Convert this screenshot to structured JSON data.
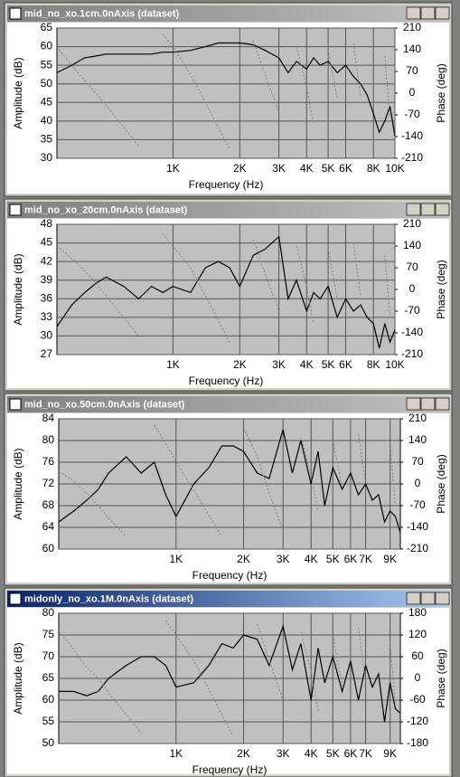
{
  "chart_data": [
    {
      "type": "line",
      "title": "mid_no_xo.1cm.0nAxis (dataset)",
      "x_label": "Frequency (Hz)",
      "y_label": "Amplitude (dB)",
      "y2_label": "Phase (deg)",
      "log_x": true,
      "grid": true,
      "xlim": [
        300,
        10000
      ],
      "xticks": [
        {
          "value": 1000,
          "label": "1K"
        },
        {
          "value": 2000,
          "label": "2K"
        },
        {
          "value": 3000,
          "label": "3K"
        },
        {
          "value": 4000,
          "label": "4K"
        },
        {
          "value": 5000,
          "label": "5K"
        },
        {
          "value": 6000,
          "label": "6K"
        },
        {
          "value": 8000,
          "label": "8K"
        },
        {
          "value": 10000,
          "label": "10K"
        }
      ],
      "ylim": [
        30,
        65
      ],
      "yticks": [
        30,
        35,
        40,
        45,
        50,
        55,
        60,
        65
      ],
      "y2lim": [
        -210,
        210
      ],
      "y2ticks": [
        -210,
        -140,
        -70,
        0,
        70,
        140,
        210
      ],
      "x": [
        300,
        350,
        400,
        450,
        500,
        600,
        700,
        800,
        900,
        1000,
        1200,
        1400,
        1600,
        1800,
        2000,
        2300,
        2600,
        3000,
        3300,
        3600,
        4000,
        4300,
        4600,
        5000,
        5500,
        6000,
        6500,
        7000,
        7500,
        8000,
        8500,
        9000,
        9500,
        10000
      ],
      "series": [
        {
          "color": "#000000",
          "values": [
            53,
            55,
            57,
            57.5,
            58,
            58,
            58,
            58,
            58.5,
            58.5,
            59,
            60,
            61,
            61,
            61,
            60.5,
            59,
            57,
            53,
            56,
            54,
            57,
            55,
            56,
            53,
            55,
            52,
            50,
            47,
            42,
            37,
            40,
            44,
            36
          ]
        },
        {
          "color": "#808080",
          "axis": "y2",
          "line_style": "dotted",
          "values": [
            150,
            90,
            40,
            0,
            -40,
            -110,
            -170,
            null,
            190,
            150,
            60,
            -30,
            -110,
            -180,
            null,
            170,
            60,
            -60,
            null,
            150,
            20,
            -100,
            null,
            140,
            -20,
            null,
            160,
            -10,
            null,
            170,
            null,
            120,
            -80,
            null
          ]
        }
      ]
    },
    {
      "type": "line",
      "title": "mid_no_xo_20cm.0nAxis (dataset)",
      "x_label": "Frequency (Hz)",
      "y_label": "Amplitude (dB)",
      "y2_label": "Phase (deg)",
      "log_x": true,
      "grid": true,
      "xlim": [
        300,
        10000
      ],
      "xticks": [
        {
          "value": 1000,
          "label": "1K"
        },
        {
          "value": 2000,
          "label": "2K"
        },
        {
          "value": 3000,
          "label": "3K"
        },
        {
          "value": 4000,
          "label": "4K"
        },
        {
          "value": 5000,
          "label": "5K"
        },
        {
          "value": 6000,
          "label": "6K"
        },
        {
          "value": 8000,
          "label": "8K"
        },
        {
          "value": 10000,
          "label": "10K"
        }
      ],
      "ylim": [
        27,
        48
      ],
      "yticks": [
        27,
        30,
        33,
        36,
        39,
        42,
        45,
        48
      ],
      "y2lim": [
        -210,
        210
      ],
      "y2ticks": [
        -210,
        -140,
        -70,
        0,
        70,
        140,
        210
      ],
      "x": [
        300,
        350,
        400,
        450,
        500,
        600,
        700,
        800,
        900,
        1000,
        1200,
        1400,
        1600,
        1800,
        2000,
        2300,
        2600,
        3000,
        3300,
        3600,
        4000,
        4300,
        4600,
        5000,
        5500,
        6000,
        6500,
        7000,
        7500,
        8000,
        8500,
        9000,
        9500,
        10000
      ],
      "series": [
        {
          "color": "#000000",
          "values": [
            31.5,
            35,
            37,
            38.5,
            39.5,
            38,
            36,
            38,
            37,
            38,
            37,
            41,
            42,
            41,
            38,
            43,
            44,
            46,
            36,
            39,
            34,
            37,
            36,
            38,
            33,
            36,
            34,
            35,
            33,
            32,
            28,
            32,
            29,
            31
          ]
        },
        {
          "color": "#808080",
          "axis": "y2",
          "line_style": "dotted",
          "values": [
            140,
            100,
            60,
            20,
            -20,
            -90,
            -150,
            null,
            180,
            140,
            70,
            -20,
            -100,
            -170,
            null,
            160,
            50,
            -70,
            null,
            140,
            10,
            -110,
            null,
            130,
            -30,
            null,
            150,
            -20,
            null,
            160,
            null,
            110,
            -90,
            null
          ]
        }
      ]
    },
    {
      "type": "line",
      "title": "mid_no_xo.50cm.0nAxis (dataset)",
      "x_label": "Frequency (Hz)",
      "y_label": "Amplitude (dB)",
      "y2_label": "Phase (deg)",
      "log_x": true,
      "grid": true,
      "xlim": [
        300,
        10000
      ],
      "xticks": [
        {
          "value": 1000,
          "label": "1K"
        },
        {
          "value": 2000,
          "label": "2K"
        },
        {
          "value": 3000,
          "label": "3K"
        },
        {
          "value": 4000,
          "label": "4K"
        },
        {
          "value": 5000,
          "label": "5K"
        },
        {
          "value": 6000,
          "label": "6K"
        },
        {
          "value": 7000,
          "label": "7K"
        },
        {
          "value": 9000,
          "label": "9K"
        }
      ],
      "ylim": [
        60,
        84
      ],
      "yticks": [
        60,
        64,
        68,
        72,
        76,
        80,
        84
      ],
      "y2lim": [
        -210,
        210
      ],
      "y2ticks": [
        -210,
        -140,
        -70,
        0,
        70,
        140,
        210
      ],
      "x": [
        300,
        350,
        400,
        450,
        500,
        600,
        700,
        800,
        900,
        1000,
        1200,
        1400,
        1600,
        1800,
        2000,
        2300,
        2600,
        3000,
        3300,
        3600,
        4000,
        4300,
        4600,
        5000,
        5500,
        6000,
        6500,
        7000,
        7500,
        8000,
        8500,
        9000,
        9500,
        10000
      ],
      "series": [
        {
          "color": "#000000",
          "values": [
            65,
            67,
            69,
            71,
            74,
            77,
            74,
            76,
            70,
            66,
            72,
            75,
            79,
            79,
            78,
            74,
            73,
            82,
            74,
            80,
            72,
            78,
            68,
            75,
            71,
            74,
            70,
            72,
            69,
            70,
            65,
            67,
            66,
            63
          ]
        },
        {
          "color": "#808080",
          "axis": "y2",
          "line_style": "dotted",
          "values": [
            40,
            10,
            -30,
            -70,
            -110,
            -170,
            null,
            190,
            130,
            70,
            -20,
            -100,
            -170,
            null,
            180,
            90,
            -30,
            -150,
            null,
            150,
            30,
            -90,
            null,
            140,
            -10,
            null,
            160,
            0,
            null,
            170,
            null,
            130,
            -70,
            null
          ]
        }
      ]
    },
    {
      "type": "line",
      "title": "midonly_no_xo.1M.0nAxis (dataset)",
      "x_label": "Frequency (Hz)",
      "y_label": "Amplitude (dB)",
      "y2_label": "Phase (deg)",
      "log_x": true,
      "grid": true,
      "xlim": [
        300,
        10000
      ],
      "xticks": [
        {
          "value": 1000,
          "label": "1K"
        },
        {
          "value": 2000,
          "label": "2K"
        },
        {
          "value": 3000,
          "label": "3K"
        },
        {
          "value": 4000,
          "label": "4K"
        },
        {
          "value": 5000,
          "label": "5K"
        },
        {
          "value": 6000,
          "label": "6K"
        },
        {
          "value": 7000,
          "label": "7K"
        },
        {
          "value": 9000,
          "label": "9K"
        }
      ],
      "ylim": [
        50,
        80
      ],
      "yticks": [
        50,
        55,
        60,
        65,
        70,
        75,
        80
      ],
      "y2lim": [
        -180,
        180
      ],
      "y2ticks": [
        -180,
        -120,
        -60,
        0,
        60,
        120,
        180
      ],
      "x": [
        300,
        350,
        400,
        450,
        500,
        600,
        700,
        800,
        900,
        1000,
        1200,
        1400,
        1600,
        1800,
        2000,
        2300,
        2600,
        3000,
        3300,
        3600,
        4000,
        4300,
        4600,
        5000,
        5500,
        6000,
        6500,
        7000,
        7500,
        8000,
        8500,
        9000,
        9500,
        10000
      ],
      "series": [
        {
          "color": "#000000",
          "values": [
            62,
            62,
            61,
            62,
            65,
            68,
            70,
            70,
            68,
            63,
            64,
            68,
            73,
            72,
            75,
            74,
            68,
            77,
            67,
            73,
            60,
            72,
            64,
            70,
            62,
            69,
            60,
            68,
            63,
            66,
            55,
            64,
            58,
            57
          ]
        },
        {
          "color": "#808080",
          "axis": "y2",
          "line_style": "dotted",
          "values": [
            130,
            80,
            30,
            0,
            -40,
            -100,
            -150,
            null,
            160,
            120,
            50,
            -30,
            -100,
            -160,
            null,
            150,
            50,
            -60,
            null,
            130,
            20,
            -90,
            null,
            120,
            -20,
            null,
            140,
            -10,
            null,
            150,
            null,
            100,
            -70,
            null
          ]
        }
      ]
    }
  ]
}
